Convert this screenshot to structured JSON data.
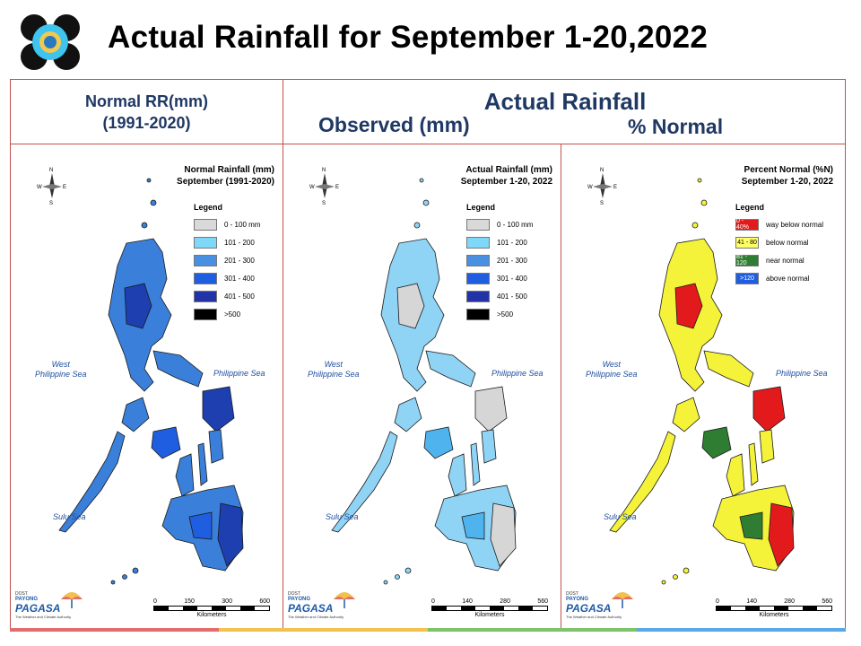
{
  "title": "Actual Rainfall for September 1-20,2022",
  "header": {
    "left_line1": "Normal RR(mm)",
    "left_line2": "(1991-2020)",
    "right_top": "Actual Rainfall",
    "right_obs": "Observed (mm)",
    "right_pct": "% Normal"
  },
  "maps": [
    {
      "title_line1": "Normal Rainfall (mm)",
      "title_line2": "September (1991-2020)",
      "legend_title": "Legend",
      "legend": [
        {
          "label": "0 - 100 mm",
          "color": "#d9d9d9",
          "swatch_text": ""
        },
        {
          "label": "101 - 200",
          "color": "#7fd8f7",
          "swatch_text": ""
        },
        {
          "label": "201 - 300",
          "color": "#4a90e2",
          "swatch_text": ""
        },
        {
          "label": "301 - 400",
          "color": "#1f5ee0",
          "swatch_text": ""
        },
        {
          "label": "401 - 500",
          "color": "#2233a8",
          "swatch_text": ""
        },
        {
          "label": ">500",
          "color": "#000000",
          "swatch_text": ""
        }
      ],
      "sea_west": "West\nPhilippine Sea",
      "sea_east": "Philippine Sea",
      "sea_south": "Sulu Sea",
      "scale_ticks": [
        "0",
        "150",
        "300",
        "600"
      ],
      "scale_unit": "Kilometers",
      "fill_main": "#3a7fd9",
      "fill_dark": "#1d3fb0"
    },
    {
      "title_line1": "Actual Rainfall (mm)",
      "title_line2": "September 1-20, 2022",
      "legend_title": "Legend",
      "legend": [
        {
          "label": "0 - 100 mm",
          "color": "#d9d9d9",
          "swatch_text": ""
        },
        {
          "label": "101 - 200",
          "color": "#7fd8f7",
          "swatch_text": ""
        },
        {
          "label": "201 - 300",
          "color": "#4a90e2",
          "swatch_text": ""
        },
        {
          "label": "301 - 400",
          "color": "#1f5ee0",
          "swatch_text": ""
        },
        {
          "label": "401 - 500",
          "color": "#2233a8",
          "swatch_text": ""
        },
        {
          "label": ">500",
          "color": "#000000",
          "swatch_text": ""
        }
      ],
      "sea_west": "West\nPhilippine Sea",
      "sea_east": "Philippine Sea",
      "sea_south": "Sulu Sea",
      "scale_ticks": [
        "0",
        "140",
        "280",
        "560"
      ],
      "scale_unit": "Kilometers",
      "fill_main": "#8fd3f5",
      "fill_dark": "#d6d6d6"
    },
    {
      "title_line1": "Percent Normal (%N)",
      "title_line2": "September 1-20, 2022",
      "legend_title": "Legend",
      "legend": [
        {
          "label": "way below normal",
          "color": "#e31a1c",
          "swatch_text": "0 - 40%"
        },
        {
          "label": "below normal",
          "color": "#ffff66",
          "swatch_text": "41 - 80"
        },
        {
          "label": "near normal",
          "color": "#2e7d32",
          "swatch_text": "81 - 120"
        },
        {
          "label": "above normal",
          "color": "#1f5ee0",
          "swatch_text": ">120"
        }
      ],
      "sea_west": "West\nPhilippine Sea",
      "sea_east": "Philippine Sea",
      "sea_south": "Sulu Sea",
      "scale_ticks": [
        "0",
        "140",
        "280",
        "560"
      ],
      "scale_unit": "Kilometers",
      "fill_main": "#f5f23a",
      "fill_dark": "#e31a1c"
    }
  ],
  "footer": {
    "brand_small": "DOST",
    "brand_payong": "PAYONG",
    "brand": "PAGASA",
    "tagline": "The Weather and Climate Authority"
  },
  "strip_colors": [
    "#e46c6c",
    "#f2c14e",
    "#7dc36b",
    "#5aa9e6"
  ]
}
